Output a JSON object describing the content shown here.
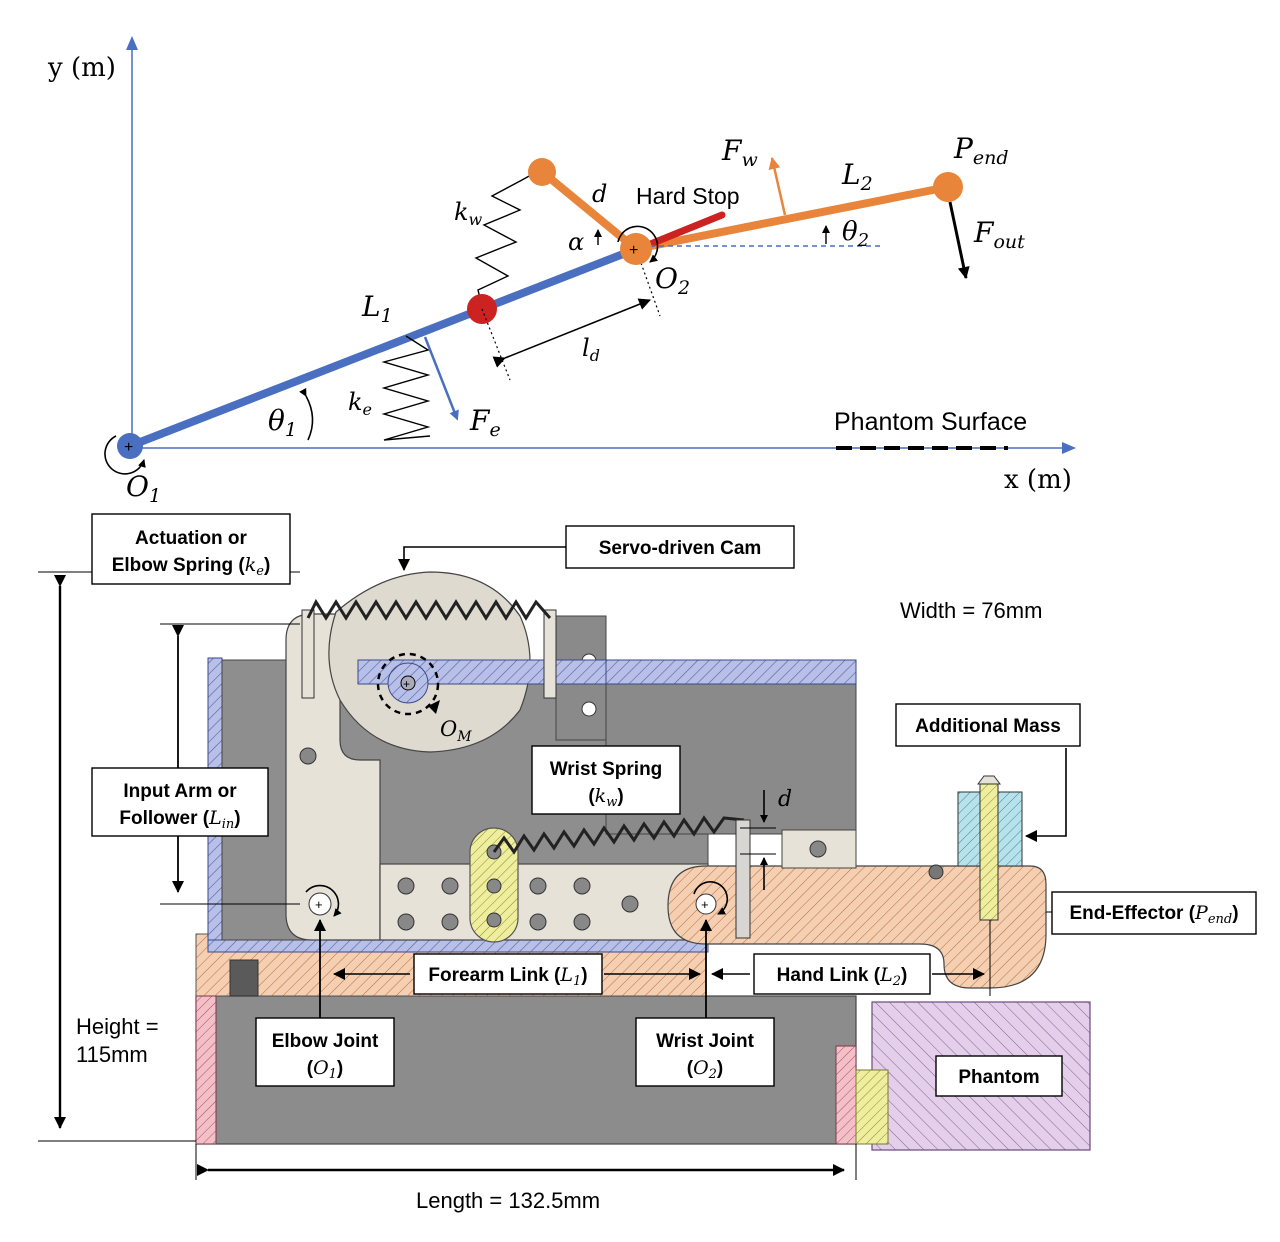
{
  "kinematic": {
    "axis_y": "y (m)",
    "axis_x": "x (m)",
    "o1_label": "O",
    "o1_sub": "1",
    "o2_label": "O",
    "o2_sub": "2",
    "L1_label": "L",
    "L1_sub": "1",
    "L2_label": "L",
    "L2_sub": "2",
    "theta1_label": "θ",
    "theta1_sub": "1",
    "theta2_label": "θ",
    "theta2_sub": "2",
    "ke_label": "k",
    "ke_sub": "e",
    "kw_label": "k",
    "kw_sub": "w",
    "Fe_label": "F",
    "Fe_sub": "e",
    "Fw_label": "F",
    "Fw_sub": "w",
    "Fout_label": "F",
    "Fout_sub": "out",
    "Pend_label": "P",
    "Pend_sub": "end",
    "ld_label": "l",
    "ld_sub": "d",
    "d_label": "d",
    "alpha_label": "α",
    "hard_stop": "Hard Stop",
    "phantom_surface": "Phantom Surface"
  },
  "mechanism": {
    "actuation_line1": "Actuation or",
    "actuation_line2": "Elbow Spring (",
    "actuation_k": "k",
    "actuation_k_sub": "e",
    "actuation_close": ")",
    "servo_cam": "Servo-driven Cam",
    "width": "Width = 76mm",
    "om_label": "O",
    "om_sub": "M",
    "wrist_spring_line1": "Wrist Spring",
    "wrist_spring_open": "(",
    "wrist_spring_k": "k",
    "wrist_spring_k_sub": "w",
    "wrist_spring_close": ")",
    "d_label": "d",
    "additional_mass": "Additional Mass",
    "input_arm_line1": "Input Arm or",
    "input_arm_line2": "Follower (",
    "input_arm_L": "L",
    "input_arm_sub": "in",
    "input_arm_close": ")",
    "end_effector": "End-Effector (",
    "end_effector_P": "P",
    "end_effector_sub": "end",
    "end_effector_close": ")",
    "forearm_link": "Forearm Link (",
    "forearm_L": "L",
    "forearm_sub": "1",
    "forearm_close": ")",
    "hand_link": "Hand Link (",
    "hand_L": "L",
    "hand_sub": "2",
    "hand_close": ")",
    "height_line1": "Height =",
    "height_line2": "115mm",
    "elbow_joint_line1": "Elbow Joint",
    "elbow_joint_open": "(",
    "elbow_joint_O": "O",
    "elbow_joint_sub": "1",
    "elbow_joint_close": ")",
    "wrist_joint_line1": "Wrist Joint",
    "wrist_joint_open": "(",
    "wrist_joint_O": "O",
    "wrist_joint_sub": "2",
    "wrist_joint_close": ")",
    "phantom": "Phantom",
    "length": "Length = 132.5mm"
  },
  "colors": {
    "forearm_blue": "#4a6fc0",
    "hand_orange": "#e8853a",
    "joint_red": "#cc2222",
    "hard_stop_red": "#cc2222",
    "base_gray": "#8c8c8c",
    "arm_light": "#e6e2d8",
    "blue_hatch": "#9aa6dc",
    "orange_hatch": "#f3c9aa",
    "purple_hatch": "#dcc4e4",
    "pink_hatch": "#f0b7c2",
    "yellow_hatch": "#ecec9c"
  }
}
